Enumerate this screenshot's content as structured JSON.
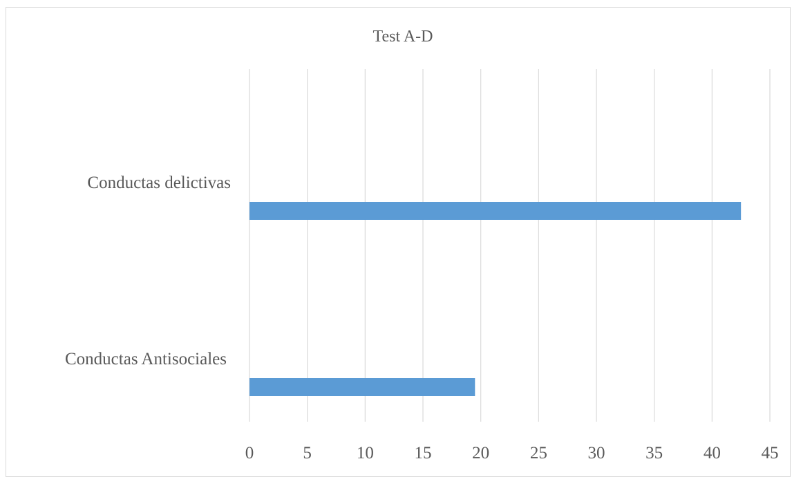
{
  "chart_data": {
    "type": "bar",
    "orientation": "horizontal",
    "title": "Test A-D",
    "xlabel": "",
    "ylabel": "",
    "categories": [
      "Conductas delictivas",
      "Conductas Antisociales"
    ],
    "values": [
      42.5,
      19.5
    ],
    "xlim": [
      0,
      45
    ],
    "ticks": [
      "0",
      "5",
      "10",
      "15",
      "20",
      "25",
      "30",
      "35",
      "40",
      "45"
    ],
    "grid": true,
    "legend": "none",
    "bar_color": "#5b9bd5"
  }
}
